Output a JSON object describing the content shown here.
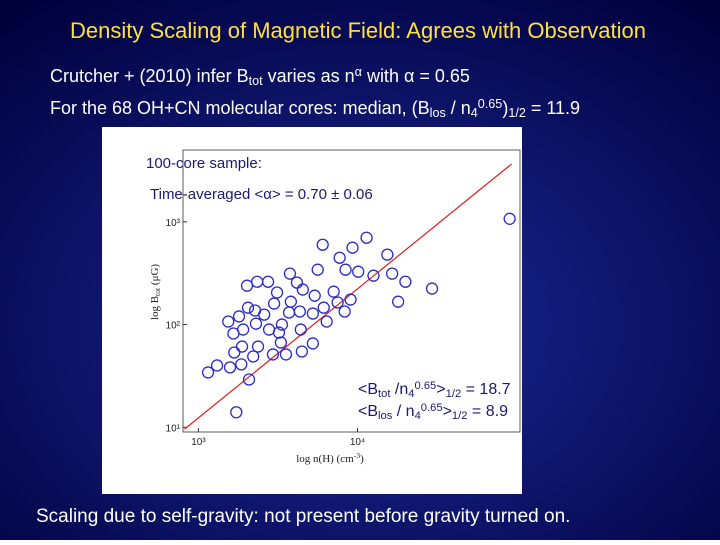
{
  "slide": {
    "title": "Density Scaling of Magnetic Field: Agrees with Observation",
    "line1": [
      {
        "t": "Crutcher + (2010) infer B"
      },
      {
        "t": "tot",
        "pos": "sub"
      },
      {
        "t": " varies as n"
      },
      {
        "t": "α",
        "pos": "sup"
      },
      {
        "t": " with α = 0.65"
      }
    ],
    "line2": [
      {
        "t": "For the 68 OH+CN molecular cores:  median, (B"
      },
      {
        "t": "los",
        "pos": "sub"
      },
      {
        "t": " / n"
      },
      {
        "t": "4",
        "pos": "sub"
      },
      {
        "t": "0.65",
        "pos": "sup"
      },
      {
        "t": ")"
      },
      {
        "t": "1/2",
        "pos": "sub"
      },
      {
        "t": " = 11.9"
      }
    ],
    "sample": "100-core sample:",
    "time_avg": "Time-averaged <α> = 0.70 ± 0.06",
    "stat1": [
      {
        "t": "<B"
      },
      {
        "t": "tot",
        "pos": "sub"
      },
      {
        "t": " /n"
      },
      {
        "t": "4",
        "pos": "sub"
      },
      {
        "t": "0.65",
        "pos": "sup"
      },
      {
        "t": ">"
      },
      {
        "t": "1/2",
        "pos": "sub"
      },
      {
        "t": " = 18.7"
      }
    ],
    "stat2": [
      {
        "t": "<B"
      },
      {
        "t": "los",
        "pos": "sub"
      },
      {
        "t": " / n"
      },
      {
        "t": "4",
        "pos": "sub"
      },
      {
        "t": "0.65",
        "pos": "sup"
      },
      {
        "t": ">"
      },
      {
        "t": "1/2",
        "pos": "sub"
      },
      {
        "t": " = 8.9"
      }
    ],
    "footer": "Scaling due to self-gravity: not present before gravity turned on."
  },
  "chart_data": {
    "type": "scatter",
    "x_label": [
      {
        "t": "log n(H) (cm"
      },
      {
        "t": "-3",
        "pos": "sup"
      },
      {
        "t": ")"
      }
    ],
    "y_label": [
      {
        "t": "log B"
      },
      {
        "t": "tot",
        "pos": "sub"
      },
      {
        "t": " (μG)"
      }
    ],
    "log_x": true,
    "log_y": true,
    "xlim": [
      800,
      105000
    ],
    "ylim": [
      9,
      5000
    ],
    "xticks": [
      {
        "value": 1000,
        "label": "10³"
      },
      {
        "value": 10000,
        "label": "10⁴"
      }
    ],
    "yticks": [
      {
        "value": 10,
        "label": "10¹"
      },
      {
        "value": 100,
        "label": "10²"
      },
      {
        "value": 1000,
        "label": "10³"
      }
    ],
    "color": "#2a2ac8",
    "x": [
      90400,
      11400,
      9300,
      15400,
      6040,
      7720,
      8410,
      10100,
      12600,
      16500,
      20000,
      29400,
      18000,
      5620,
      3760,
      4160,
      4530,
      5380,
      7080,
      9040,
      8300,
      6130,
      5240,
      4340,
      3810,
      3120,
      2740,
      2340,
      2020,
      2990,
      2590,
      2270,
      2050,
      1800,
      1540,
      1660,
      1910,
      2300,
      2780,
      3350,
      3710,
      4400,
      3300,
      2940,
      2370,
      2210,
      1880,
      1680,
      1580,
      1860,
      2080,
      1310,
      1150,
      4470,
      5240,
      1730,
      3210,
      3550,
      6400,
      7500
    ],
    "values": [
      1070,
      700,
      560,
      479,
      598,
      447,
      342,
      327,
      299,
      313,
      261,
      224,
      167,
      342,
      313,
      256,
      219,
      191,
      209,
      175,
      134,
      146,
      128,
      134,
      167,
      205,
      261,
      261,
      239,
      160,
      125,
      137,
      146,
      120,
      107,
      81.8,
      89.4,
      102,
      89.4,
      100,
      131,
      89.4,
      66.8,
      51.2,
      61.1,
      48.9,
      61.1,
      53.5,
      38.3,
      41.0,
      29.2,
      40.0,
      34.2,
      54.7,
      65.5,
      14.0,
      83.6,
      51.2,
      107,
      164
    ],
    "fit": {
      "x": [
        818,
        93000
      ],
      "values": [
        9.6,
        3660
      ],
      "color": "#e02020"
    }
  }
}
